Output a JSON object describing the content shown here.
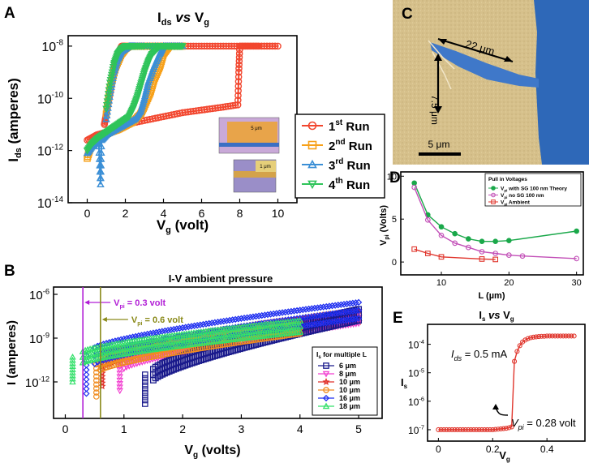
{
  "chart_data": [
    {
      "panel": "A",
      "type": "line",
      "title": "I_ds vs V_g",
      "title_parts": [
        "I",
        "ds",
        " vs ",
        "V",
        "g"
      ],
      "xlabel": "V_g (volt)",
      "xlabel_parts": [
        "V",
        "g",
        " (volt)"
      ],
      "ylabel": "I_ds (amperes)",
      "ylabel_parts": [
        "I",
        "ds",
        " (amperes)"
      ],
      "xlim": [
        -1,
        11
      ],
      "ylim_log10": [
        -14,
        -7.6
      ],
      "xticks": [
        "0",
        "2",
        "4",
        "6",
        "8",
        "10"
      ],
      "xtick_values": [
        0,
        2,
        4,
        6,
        8,
        10
      ],
      "yticks": [
        [
          "10",
          "-8"
        ],
        [
          "10",
          "-10"
        ],
        [
          "10",
          "-12"
        ],
        [
          "10",
          "-14"
        ]
      ],
      "ytick_exps": [
        -8,
        -10,
        -12,
        -14
      ],
      "legend_position": "bottom-right",
      "series": [
        {
          "name": "1st Run",
          "label_parts": [
            "1",
            "st",
            " Run"
          ],
          "color": "#f2462e",
          "marker": "circle",
          "x": [
            0,
            0.5,
            1,
            1.5,
            2,
            3,
            4,
            5,
            6,
            7,
            7.9,
            7.95,
            8,
            8.5,
            9,
            10,
            9,
            8,
            7,
            6,
            5,
            4,
            3,
            2,
            1.8,
            1.6,
            1.5,
            1.4,
            1.3,
            1.2,
            1.1,
            1.0,
            0.9
          ],
          "log_y": [
            -11.6,
            -11.4,
            -11.3,
            -11.15,
            -11.0,
            -10.85,
            -10.7,
            -10.55,
            -10.45,
            -10.35,
            -10.25,
            -9.0,
            -8.0,
            -8.0,
            -8.0,
            -8.0,
            -8.0,
            -8.0,
            -8.0,
            -8.0,
            -8.0,
            -8.0,
            -8.0,
            -8.0,
            -8.0,
            -8.3,
            -8.6,
            -9.0,
            -9.4,
            -9.8,
            -10.2,
            -10.6,
            -11.0
          ]
        },
        {
          "name": "2nd Run",
          "label_parts": [
            "2",
            "nd",
            " Run"
          ],
          "color": "#f7a11a",
          "marker": "square",
          "x": [
            0,
            0.2,
            0.5,
            0.8,
            1.2,
            1.6,
            2.0,
            2.4,
            2.8,
            3.0,
            3.3,
            3.5,
            3.8,
            4.0,
            4.3,
            4.6,
            5.0,
            4.5,
            4.0,
            3.5,
            3.0,
            2.5,
            2.2,
            2.0,
            1.8,
            1.5,
            1.2,
            1.0
          ],
          "log_y": [
            -12.3,
            -11.8,
            -11.6,
            -11.45,
            -11.3,
            -11.2,
            -11.05,
            -10.9,
            -10.6,
            -10.3,
            -9.8,
            -9.3,
            -8.8,
            -8.3,
            -8.0,
            -8.0,
            -8.0,
            -8.0,
            -8.0,
            -8.0,
            -8.0,
            -8.0,
            -8.0,
            -8.1,
            -8.3,
            -8.8,
            -9.6,
            -10.6
          ]
        },
        {
          "name": "3rd Run",
          "label_parts": [
            "3",
            "rd",
            " Run"
          ],
          "color": "#3b8fd6",
          "marker": "triangle-up",
          "x": [
            0,
            0.3,
            0.6,
            0.7,
            0.75,
            1.0,
            1.5,
            2.0,
            2.5,
            2.8,
            3.0,
            3.2,
            3.5,
            3.8,
            4.0,
            4.5,
            5.0,
            4.0,
            3.0,
            2.5,
            2.2,
            2.0,
            1.8,
            1.6,
            1.4,
            1.2,
            1.0
          ],
          "log_y": [
            -12.1,
            -11.8,
            -11.6,
            -13.3,
            -11.6,
            -11.4,
            -11.2,
            -11.0,
            -10.8,
            -10.5,
            -10.0,
            -9.4,
            -8.8,
            -8.3,
            -8.0,
            -8.0,
            -8.0,
            -8.0,
            -8.0,
            -8.0,
            -8.0,
            -8.1,
            -8.2,
            -8.5,
            -9.0,
            -9.8,
            -10.8
          ]
        },
        {
          "name": "4th Run",
          "label_parts": [
            "4",
            "th",
            " Run"
          ],
          "color": "#2fc45a",
          "marker": "triangle-down",
          "x": [
            0,
            0.3,
            0.6,
            1.0,
            1.4,
            1.8,
            2.2,
            2.4,
            2.6,
            2.8,
            3.0,
            3.2,
            3.4,
            3.8,
            4.2,
            4.6,
            5.0,
            4.0,
            3.0,
            2.5,
            2.2,
            2.0,
            1.8,
            1.6,
            1.4,
            1.2,
            1.0
          ],
          "log_y": [
            -12.0,
            -11.7,
            -11.5,
            -11.3,
            -11.1,
            -10.9,
            -10.7,
            -10.4,
            -10.0,
            -9.5,
            -9.0,
            -8.6,
            -8.3,
            -8.0,
            -8.0,
            -8.0,
            -8.0,
            -8.0,
            -8.0,
            -8.0,
            -8.0,
            -8.0,
            -8.1,
            -8.3,
            -8.7,
            -9.4,
            -10.4
          ]
        }
      ],
      "inset": {
        "top_label": "5 μm",
        "bottom_label": "1 μm"
      }
    },
    {
      "panel": "B",
      "type": "scatter",
      "title": "I-V ambient pressure",
      "xlabel": "V_g (volts)",
      "xlabel_parts": [
        "V",
        "g",
        " (volts)"
      ],
      "ylabel": "I (amperes)",
      "xlim": [
        -0.2,
        5.4
      ],
      "ylim_log10": [
        -14.5,
        -5.5
      ],
      "xticks": [
        "0",
        "1",
        "2",
        "3",
        "4",
        "5"
      ],
      "xtick_values": [
        0,
        1,
        2,
        3,
        4,
        5
      ],
      "yticks": [
        [
          "10",
          "-6"
        ],
        [
          "10",
          "-9"
        ],
        [
          "10",
          "-12"
        ]
      ],
      "ytick_exps": [
        -6,
        -9,
        -12
      ],
      "annotations": [
        {
          "text_parts": [
            "V",
            "pi",
            " = 0.3 volt"
          ],
          "x": 0.3,
          "color": "#b21fd6"
        },
        {
          "text_parts": [
            "V",
            "pi",
            " = 0.6 volt"
          ],
          "x": 0.6,
          "color": "#8a8a1a"
        }
      ],
      "legend_title_parts": [
        "I",
        "s",
        " for multiple L"
      ],
      "legend_position": "bottom-right",
      "series": [
        {
          "name": "6 μm",
          "color": "#1a1a8c",
          "marker": "square",
          "x": [
            1.3,
            1.5,
            5.0
          ],
          "log_y": [
            -13.5,
            -11.5,
            -7.4
          ],
          "end_x": 5.0
        },
        {
          "name": "8 μm",
          "color": "#f23fd0",
          "marker": "triangle-down",
          "x": [
            0.9,
            1.0,
            5.0
          ],
          "log_y": [
            -12.6,
            -10.7,
            -7.6
          ],
          "end_x": 5.0
        },
        {
          "name": "10 μm",
          "color": "#e0322a",
          "marker": "star",
          "x": [
            0.6,
            0.7,
            5.0
          ],
          "log_y": [
            -12.3,
            -10.5,
            -7.5
          ],
          "end_x": 5.0
        },
        {
          "name": "10 μm",
          "color": "#f08c20",
          "marker": "circle",
          "x": [
            0.5,
            0.6,
            4.0
          ],
          "log_y": [
            -13.0,
            -10.8,
            -8.3
          ],
          "end_x": 4.0
        },
        {
          "name": "16 μm",
          "color": "#1f2ff0",
          "marker": "diamond",
          "x": [
            0.3,
            0.5,
            5.0
          ],
          "log_y": [
            -12.8,
            -10.2,
            -7.1
          ],
          "end_x": 5.0
        },
        {
          "name": "18 μm",
          "color": "#33e06a",
          "marker": "triangle-up",
          "x": [
            0.05,
            0.3,
            4.0
          ],
          "log_y": [
            -12.0,
            -10.3,
            -8.2
          ],
          "end_x": 4.0
        }
      ]
    },
    {
      "panel": "D",
      "type": "line",
      "title": "",
      "xlabel": "L (µm)",
      "ylabel": "V_pi (Volts)",
      "ylabel_parts": [
        "V",
        "pi",
        " (Volts)"
      ],
      "xlim": [
        4,
        31
      ],
      "ylim": [
        -1.5,
        10.5
      ],
      "xticks": [
        "10",
        "20",
        "30"
      ],
      "xtick_values": [
        10,
        20,
        30
      ],
      "yticks": [
        "0",
        "5",
        "10"
      ],
      "ytick_values": [
        0,
        5,
        10
      ],
      "legend_title": "Pull in Voltages",
      "legend_position": "top-right",
      "series": [
        {
          "name": "V_pi with SG 100 nm Theory",
          "label_parts": [
            "V",
            "pi",
            " with SG 100 nm Theory"
          ],
          "color": "#1aa84a",
          "marker": "filled-circle",
          "x": [
            6,
            8,
            10,
            12,
            14,
            16,
            18,
            20,
            30
          ],
          "values": [
            9.2,
            5.5,
            4.1,
            3.3,
            2.7,
            2.4,
            2.4,
            2.5,
            3.6
          ]
        },
        {
          "name": "V_pi no SG 100 nm",
          "label_parts": [
            "V",
            "pi",
            " no SG 100 nm"
          ],
          "color": "#c24fb7",
          "marker": "open-circle",
          "x": [
            6,
            8,
            10,
            12,
            14,
            16,
            18,
            20,
            22,
            30
          ],
          "values": [
            8.7,
            4.9,
            3.1,
            2.2,
            1.7,
            1.2,
            1.0,
            0.8,
            0.7,
            0.4
          ]
        },
        {
          "name": "V_pi Ambient",
          "label_parts": [
            "V",
            "pi",
            " Ambient"
          ],
          "color": "#e0352c",
          "marker": "open-square",
          "x": [
            6,
            8,
            10,
            16,
            18
          ],
          "values": [
            1.5,
            1.0,
            0.6,
            0.35,
            0.3
          ]
        }
      ]
    },
    {
      "panel": "E",
      "type": "scatter",
      "title": "I_s vs V_g",
      "title_parts": [
        "I",
        "s",
        " vs ",
        "V",
        "g"
      ],
      "xlabel": "V_g",
      "xlabel_parts": [
        "V",
        "g",
        ""
      ],
      "ylabel": "I_s",
      "ylabel_parts": [
        "I",
        "s",
        ""
      ],
      "xlim": [
        -0.04,
        0.54
      ],
      "ylim_log10": [
        -7.4,
        -3.3
      ],
      "xticks": [
        "0",
        "0.2",
        "0.4"
      ],
      "xtick_values": [
        0,
        0.2,
        0.4
      ],
      "yticks": [
        [
          "10",
          "-4"
        ],
        [
          "10",
          "-5"
        ],
        [
          "10",
          "-6"
        ],
        [
          "10",
          "-7"
        ]
      ],
      "ytick_exps": [
        -4,
        -5,
        -6,
        -7
      ],
      "annotations": [
        {
          "text_parts": [
            "I",
            "ds",
            " = 0.5 mA"
          ]
        },
        {
          "text_parts": [
            "V",
            "pi",
            " = 0.28 volt"
          ]
        }
      ],
      "series": [
        {
          "name": "I_s",
          "color": "#e0352c",
          "marker": "open-circle",
          "x": [
            0,
            0.01,
            0.02,
            0.03,
            0.04,
            0.05,
            0.06,
            0.07,
            0.08,
            0.09,
            0.1,
            0.11,
            0.12,
            0.13,
            0.14,
            0.15,
            0.16,
            0.17,
            0.18,
            0.19,
            0.2,
            0.21,
            0.22,
            0.23,
            0.24,
            0.25,
            0.26,
            0.27,
            0.28,
            0.29,
            0.3,
            0.31,
            0.32,
            0.33,
            0.34,
            0.35,
            0.36,
            0.37,
            0.38,
            0.39,
            0.4,
            0.41,
            0.42,
            0.43,
            0.44,
            0.45,
            0.46,
            0.47,
            0.48,
            0.49,
            0.5
          ],
          "log_y": [
            -7,
            -7,
            -7,
            -7,
            -7,
            -7,
            -7,
            -7,
            -7,
            -7,
            -7,
            -7,
            -7,
            -7,
            -7,
            -7,
            -7,
            -7,
            -7,
            -7,
            -7,
            -6.99,
            -6.98,
            -6.97,
            -6.96,
            -6.95,
            -6.93,
            -6.9,
            -4.6,
            -4.25,
            -4.05,
            -3.92,
            -3.85,
            -3.8,
            -3.77,
            -3.75,
            -3.74,
            -3.73,
            -3.72,
            -3.72,
            -3.71,
            -3.71,
            -3.71,
            -3.71,
            -3.71,
            -3.71,
            -3.71,
            -3.71,
            -3.71,
            -3.71,
            -3.71
          ]
        }
      ]
    }
  ],
  "micrograph_c": {
    "panel": "C",
    "length_label": "22 μm",
    "gap_label": "7.5 μm",
    "scalebar_label": "5 μm",
    "colors": {
      "substrate": "#d9c48f",
      "gate": "#2e68b8",
      "cantilever": "#3f78c9"
    }
  },
  "panel_letters": [
    "A",
    "B",
    "C",
    "D",
    "E"
  ]
}
